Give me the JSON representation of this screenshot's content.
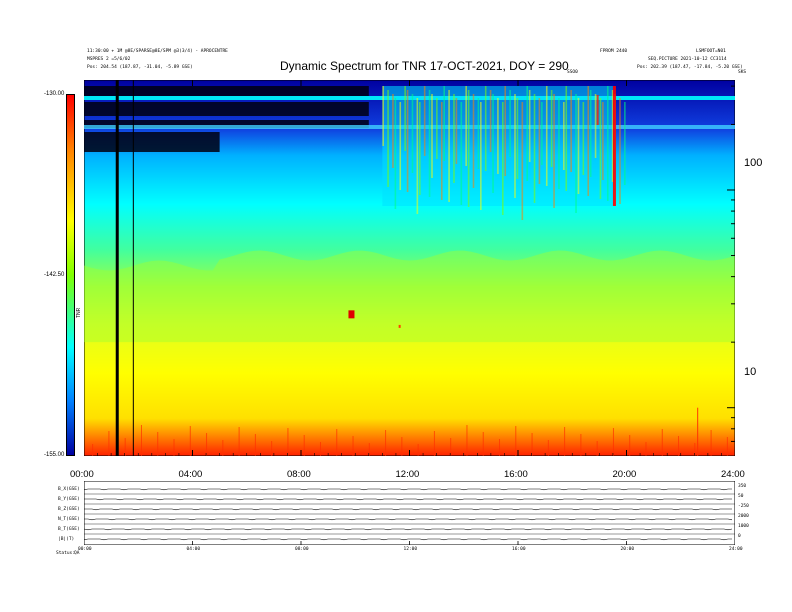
{
  "header": {
    "title": "Dynamic Spectrum for TNR 17-OCT-2021, DOY = 290",
    "left_line1": "11:30:00 + 1M @8E/SPARSE@8E/SPM @3(3/4) - APROCENTRE",
    "left_line2": "MSPRES 2 =5/6/02",
    "left_line3": "Pos: 204.54 (187.87, -31.04, -5.89 GSE)",
    "right_line0a": "FPROM 2440",
    "right_line0b": "LSMFOOT=N01",
    "right_line1": "SEQ.PICTURE 2021-10-12 CC3114",
    "right_line2": "Pos: 202.39 (187.47, -17.84, -5.20 GSE)",
    "marker_left": "SSO0",
    "marker_right": "SKS"
  },
  "chart_data": {
    "type": "heatmap",
    "title": "Dynamic Spectrum for TNR 17-OCT-2021, DOY = 290",
    "x_ticks": [
      "00:00",
      "04:00",
      "08:00",
      "12:00",
      "16:00",
      "20:00",
      "24:00"
    ],
    "x_range_hours": [
      0,
      24
    ],
    "y_scale": "log",
    "y_range": [
      6,
      320
    ],
    "y_ticks": [
      "100",
      "10"
    ],
    "colorbar_ticks": [
      "-130.00",
      "-142.50",
      "-155.00"
    ],
    "colorbar_label": "TNR",
    "colorbar_range": [
      -155,
      -130
    ],
    "colormap": [
      "#0000a0",
      "#0080ff",
      "#00ffff",
      "#80ff00",
      "#ffff00",
      "#ff8000",
      "#ff0000"
    ],
    "aux_panel": {
      "row_labels": [
        "B_X(GSE)",
        "B_Y(GSE)",
        "B_Z(GSE)",
        "N_T(GSE)",
        "B_T(GSE)",
        "|B|(T)"
      ],
      "right_labels": [
        "350",
        "50",
        "-250",
        "2000",
        "1000",
        "0"
      ],
      "x_ticks": [
        "00:00",
        "04:00",
        "08:00",
        "12:00",
        "16:00",
        "20:00",
        "24:00"
      ],
      "status_labels": [
        "Status:",
        "QA"
      ]
    }
  }
}
